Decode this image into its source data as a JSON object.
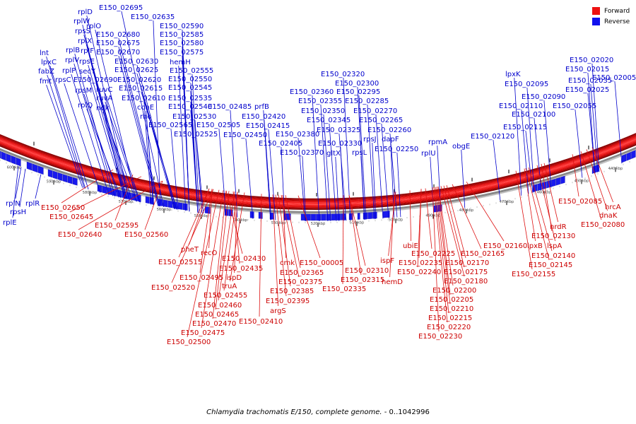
{
  "caption": {
    "organism": "Chlamydia trachomatis E/150, complete genome.",
    "range": " - 0..1042996"
  },
  "legend": [
    {
      "label": "Forward",
      "color": "#ee1111"
    },
    {
      "label": "Reverse",
      "color": "#1111ee"
    }
  ],
  "colors": {
    "forward_track": "#ee1111",
    "reverse_gene": "#1a1aee",
    "backbone": "#808080",
    "forward_label": "#cc0000",
    "reverse_label": "#0000cc"
  },
  "ticks": [
    "600 kbp",
    "590 kbp",
    "580 kbp",
    "570 kbp",
    "560 kbp",
    "550 kbp",
    "540 kbp",
    "530 kbp",
    "520 kbp",
    "510 kbp",
    "500 kbp",
    "490 kbp",
    "480 kbp",
    "470 kbp",
    "460 kbp",
    "450 kbp",
    "440 kbp"
  ],
  "reverse_labels": [
    "rplD",
    "E150_02695",
    "rplW",
    "E150_02635",
    "rpsS",
    "rplO",
    "E150_02590",
    "E150_02680",
    "E150_02585",
    "rplX",
    "E150_02675",
    "rplB",
    "E150_02580",
    "rplF",
    "E150_02670",
    "E150_02575",
    "lnt",
    "rplV",
    "rpsE",
    "lpxC",
    "E150_02630",
    "hemH",
    "rplP",
    "E150_02625",
    "E150_02555",
    "fabZ",
    "secY",
    "E150_02620",
    "E150_02550",
    "fmt",
    "rpsC",
    "E150_02690",
    "E150_02615",
    "E150_02545",
    "ruvC",
    "rpsM",
    "E150_02610",
    "E150_02535",
    "ruvA",
    "rplQ",
    "coaE",
    "E150_02540",
    "ndk",
    "rho",
    "E150_02530",
    "E150_02565",
    "E150_02525",
    "E150_02485",
    "prfB",
    "E150_02505",
    "E150_02420",
    "E150_02415",
    "E150_02450",
    "E150_02380",
    "E150_02405",
    "E150_02370",
    "gltX",
    "E150_02320",
    "E150_02300",
    "E150_02360",
    "E150_02295",
    "E150_02355",
    "E150_02285",
    "E150_02350",
    "E150_02270",
    "E150_02345",
    "E150_02265",
    "E150_02325",
    "E150_02260",
    "E150_02330",
    "rpsJ",
    "dapF",
    "rpsL",
    "E150_02250",
    "rpmA",
    "rplU",
    "obgE",
    "lpxK",
    "E150_02095",
    "E150_02090",
    "E150_02110",
    "E150_02100",
    "E150_02115",
    "E150_02120",
    "E150_02020",
    "E150_02015",
    "E150_02005",
    "E150_02035",
    "E150_02025",
    "E150_02055",
    "rplN",
    "rplR",
    "rpsH",
    "rplE"
  ],
  "forward_labels": [
    "E150_02650",
    "E150_02645",
    "E150_02640",
    "E150_02595",
    "E150_02560",
    "pheT",
    "recO",
    "E150_02515",
    "E150_02430",
    "E150_02435",
    "ispD",
    "E150_02495",
    "E150_02520",
    "truA",
    "E150_02455",
    "E150_02460",
    "E150_02465",
    "E150_02470",
    "E150_02475",
    "E150_02500",
    "cmk",
    "E150_00005",
    "E150_02365",
    "E150_02375",
    "E150_02385",
    "E150_02395",
    "argS",
    "E150_02410",
    "E150_02310",
    "E150_02315",
    "E150_02335",
    "ispF",
    "hemD",
    "ubiE",
    "E150_02225",
    "E150_02235",
    "E150_02240",
    "E150_02165",
    "E150_02170",
    "E150_02175",
    "E150_02180",
    "E150_02200",
    "E150_02205",
    "E150_02210",
    "E150_02215",
    "E150_02220",
    "E150_02230",
    "E150_02160",
    "lpxB",
    "lspA",
    "nrdR",
    "E150_02130",
    "E150_02140",
    "E150_02145",
    "E150_02155",
    "E150_02085",
    "hrcA",
    "dnaK",
    "E150_02080"
  ]
}
